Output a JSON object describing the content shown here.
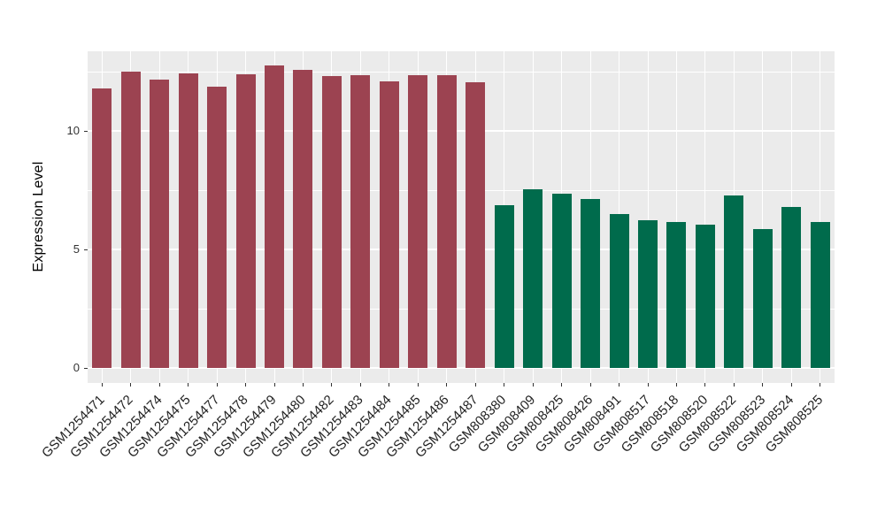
{
  "chart_data": {
    "type": "bar",
    "title": "",
    "xlabel": "",
    "ylabel": "Expression Level",
    "legend_position": "none",
    "grid": true,
    "panel_bg": "#EBEBEB",
    "grid_color": "#FFFFFF",
    "tick_color": "#333333",
    "yticks": [
      0,
      5,
      10
    ],
    "minor_yticks": [
      2.5,
      7.5,
      12.5
    ],
    "ylim": [
      -0.65,
      13.35
    ],
    "categories": [
      "GSM1254471",
      "GSM1254472",
      "GSM1254474",
      "GSM1254475",
      "GSM1254477",
      "GSM1254478",
      "GSM1254479",
      "GSM1254480",
      "GSM1254482",
      "GSM1254483",
      "GSM1254484",
      "GSM1254485",
      "GSM1254486",
      "GSM1254487",
      "GSM808380",
      "GSM808409",
      "GSM808425",
      "GSM808426",
      "GSM808491",
      "GSM808517",
      "GSM808518",
      "GSM808520",
      "GSM808522",
      "GSM808523",
      "GSM808524",
      "GSM808525"
    ],
    "values": [
      11.79,
      12.5,
      12.14,
      12.41,
      11.87,
      12.39,
      12.76,
      12.57,
      12.29,
      12.34,
      12.08,
      12.36,
      12.35,
      12.04,
      6.87,
      7.51,
      7.35,
      7.1,
      6.47,
      6.23,
      6.16,
      6.03,
      7.28,
      5.83,
      6.78,
      6.13
    ],
    "groups": [
      "maroon",
      "maroon",
      "maroon",
      "maroon",
      "maroon",
      "maroon",
      "maroon",
      "maroon",
      "maroon",
      "maroon",
      "maroon",
      "maroon",
      "maroon",
      "maroon",
      "green",
      "green",
      "green",
      "green",
      "green",
      "green",
      "green",
      "green",
      "green",
      "green",
      "green",
      "green"
    ],
    "colors": {
      "maroon": "#9C4351",
      "green": "#006B4C"
    }
  }
}
